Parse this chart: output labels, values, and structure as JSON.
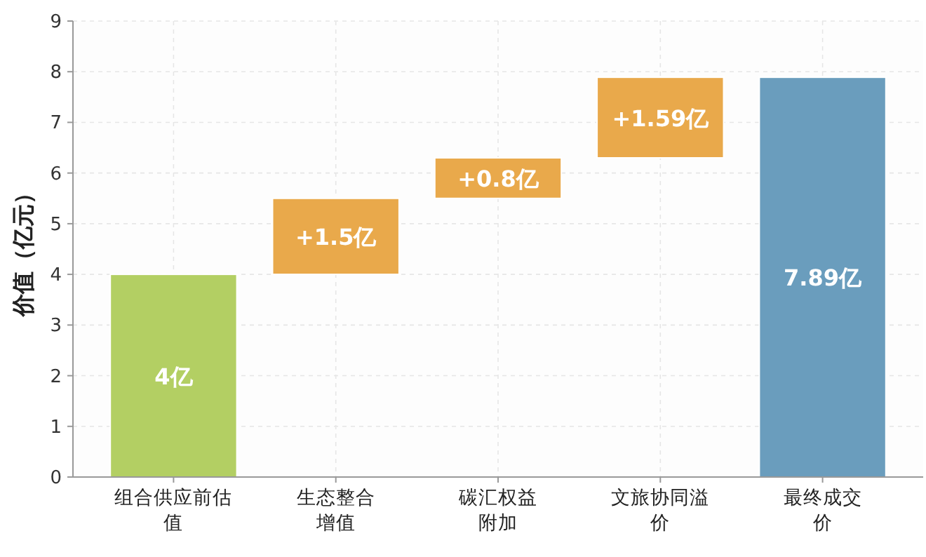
{
  "chart_data": {
    "type": "bar",
    "ylabel": "价值（亿元）",
    "categories": [
      "组合供应前估值",
      "生态整合增值",
      "碳汇权益附加",
      "文旅协同溢价",
      "最终成交价"
    ],
    "values": [
      4,
      1.5,
      0.8,
      1.59,
      7.89
    ],
    "base": [
      0,
      4,
      5.5,
      6.3,
      0
    ],
    "colors": [
      "#b3cf63",
      "#e9a94b",
      "#e9a94b",
      "#e9a94b",
      "#6a9dbd"
    ],
    "value_labels": [
      "4亿",
      "+1.5亿",
      "+0.8亿",
      "+1.59亿",
      "7.89亿"
    ],
    "ylim": [
      0,
      9
    ],
    "yticks": [
      0,
      1,
      2,
      3,
      4,
      5,
      6,
      7,
      8,
      9
    ],
    "grid": true
  }
}
